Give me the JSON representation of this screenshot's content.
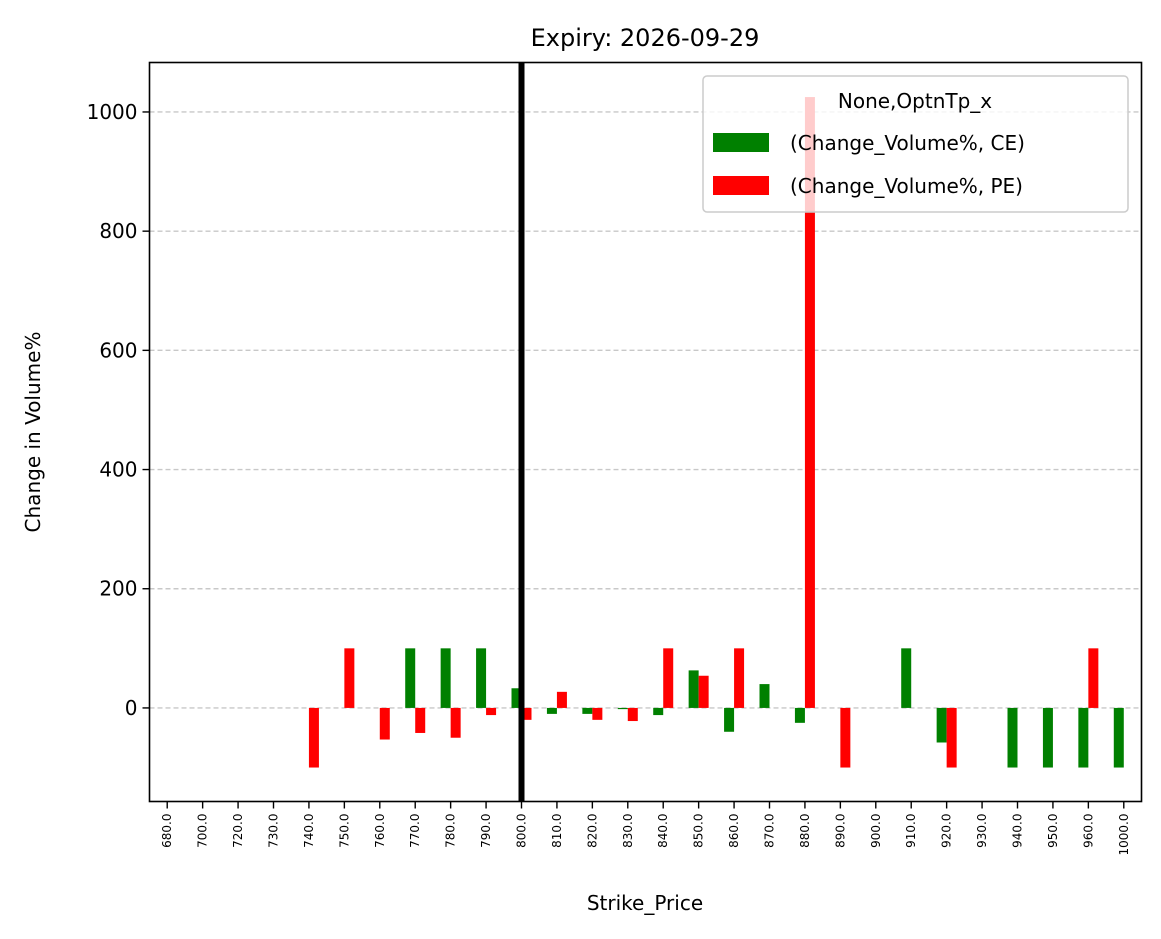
{
  "chart_data": {
    "type": "bar",
    "title": "Expiry: 2026-09-29",
    "xlabel": "Strike_Price",
    "ylabel": "Change in Volume%",
    "categories": [
      "680.0",
      "700.0",
      "720.0",
      "730.0",
      "740.0",
      "750.0",
      "760.0",
      "770.0",
      "780.0",
      "790.0",
      "800.0",
      "810.0",
      "820.0",
      "830.0",
      "840.0",
      "850.0",
      "860.0",
      "870.0",
      "880.0",
      "890.0",
      "900.0",
      "910.0",
      "920.0",
      "930.0",
      "940.0",
      "950.0",
      "960.0",
      "1000.0"
    ],
    "series": [
      {
        "name": "(Change_Volume%, CE)",
        "color": "#008000",
        "values": [
          0,
          0,
          0,
          0,
          0,
          0,
          0,
          100,
          100,
          100,
          33,
          -10,
          -10,
          -2,
          -12,
          63,
          -40,
          40,
          -25,
          0,
          0,
          100,
          -58,
          0,
          -100,
          -100,
          -100,
          -100
        ]
      },
      {
        "name": "(Change_Volume%, PE)",
        "color": "#ff0000",
        "values": [
          0,
          0,
          0,
          0,
          -100,
          100,
          -53,
          -42,
          -50,
          -12,
          -20,
          27,
          -20,
          -22,
          100,
          54,
          100,
          0,
          1025,
          -100,
          0,
          0,
          -100,
          0,
          0,
          0,
          100,
          0
        ]
      }
    ],
    "yticks": [
      0,
      200,
      400,
      600,
      800,
      1000
    ],
    "ylim": [
      -157,
      1083
    ],
    "grid": "y dashed",
    "legend": {
      "title": "None,OptnTp_x",
      "placement": "upper-right"
    },
    "reference_line": {
      "category": "800.0",
      "color": "#000000"
    }
  }
}
